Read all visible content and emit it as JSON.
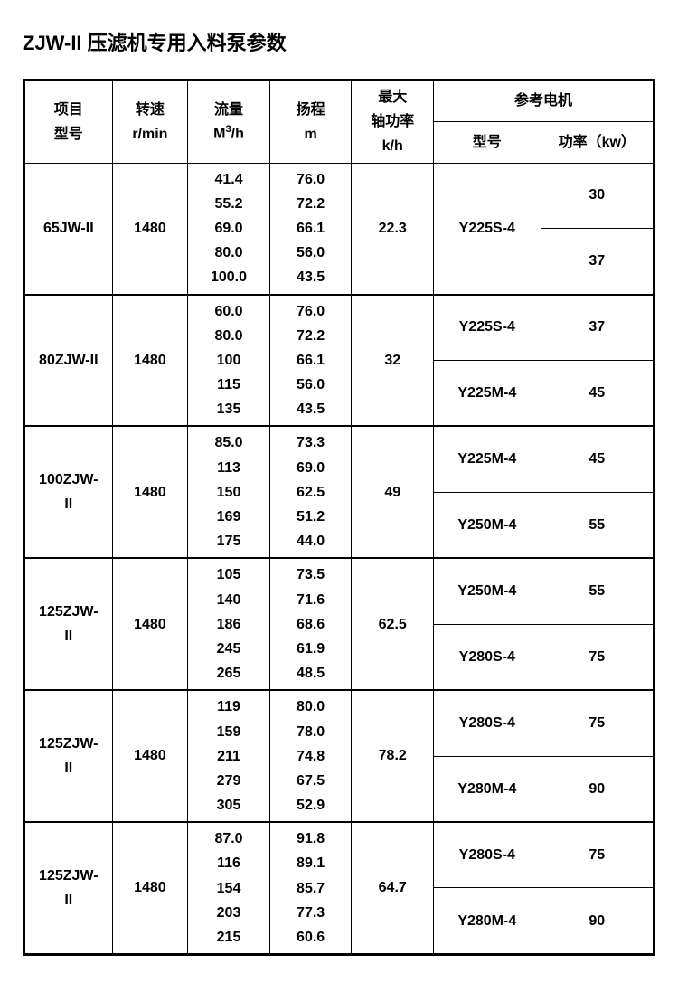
{
  "title": "ZJW-II 压滤机专用入料泵参数",
  "table": {
    "headers": {
      "col1": "项目\n型号",
      "col2": "转速\nr/min",
      "col3_label": "流量",
      "col3_unit": "M³/h",
      "col4": "扬程\nm",
      "col5": "最大\n轴功率\nk/h",
      "col6_group": "参考电机",
      "col6a": "型号",
      "col6b": "功率（kw）"
    },
    "rows": [
      {
        "model": "65JW-II",
        "speed": "1480",
        "flow": "41.4\n55.2\n69.0\n80.0\n100.0",
        "head": "76.0\n72.2\n66.1\n56.0\n43.5",
        "shaft": "22.3",
        "motor1_model": "Y225S-4",
        "motor1_power": "30",
        "motor2_model": "",
        "motor2_power": "37",
        "motor1_span_model": 2
      },
      {
        "model": "80ZJW-II",
        "speed": "1480",
        "flow": "60.0\n80.0\n100\n115\n135",
        "head": "76.0\n72.2\n66.1\n56.0\n43.5",
        "shaft": "32",
        "motor1_model": "Y225S-4",
        "motor1_power": "37",
        "motor2_model": "Y225M-4",
        "motor2_power": "45"
      },
      {
        "model": "100ZJW-\nII",
        "speed": "1480",
        "flow": "85.0\n113\n150\n169\n175",
        "head": "73.3\n69.0\n62.5\n51.2\n44.0",
        "shaft": "49",
        "motor1_model": "Y225M-4",
        "motor1_power": "45",
        "motor2_model": "Y250M-4",
        "motor2_power": "55"
      },
      {
        "model": "125ZJW-\nII",
        "speed": "1480",
        "flow": "105\n140\n186\n245\n265",
        "head": "73.5\n71.6\n68.6\n61.9\n48.5",
        "shaft": "62.5",
        "motor1_model": "Y250M-4",
        "motor1_power": "55",
        "motor2_model": "Y280S-4",
        "motor2_power": "75"
      },
      {
        "model": "125ZJW-\nII",
        "speed": "1480",
        "flow": "119\n159\n211\n279\n305",
        "head": "80.0\n78.0\n74.8\n67.5\n52.9",
        "shaft": "78.2",
        "motor1_model": "Y280S-4",
        "motor1_power": "75",
        "motor2_model": "Y280M-4",
        "motor2_power": "90"
      },
      {
        "model": "125ZJW-\nII",
        "speed": "1480",
        "flow": "87.0\n116\n154\n203\n215",
        "head": "91.8\n89.1\n85.7\n77.3\n60.6",
        "shaft": "64.7",
        "motor1_model": "Y280S-4",
        "motor1_power": "75",
        "motor2_model": "Y280M-4",
        "motor2_power": "90"
      }
    ],
    "col_widths": [
      "14%",
      "12%",
      "13%",
      "13%",
      "13%",
      "17%",
      "18%"
    ],
    "border_color": "#000000",
    "background_color": "#ffffff",
    "font_size_title": 22,
    "font_size_body": 16
  }
}
